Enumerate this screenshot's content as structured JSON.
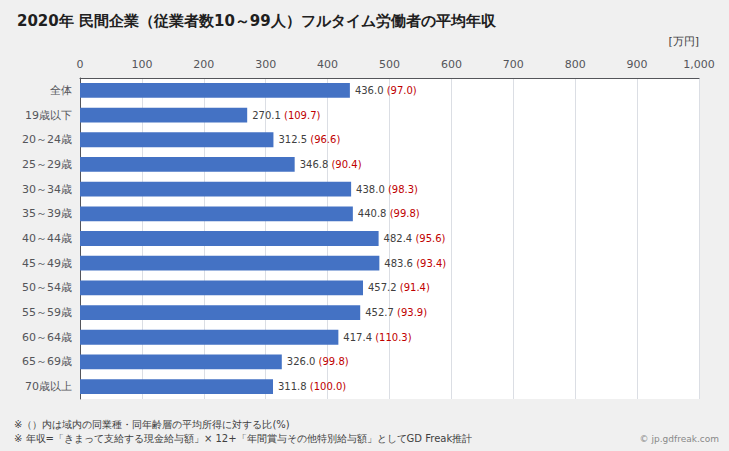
{
  "chart_data": {
    "type": "bar",
    "orientation": "horizontal",
    "title": "2020年 民間企業（従業者数10～99人）フルタイム労働者の平均年収",
    "xlabel": "[万円]",
    "categories": [
      "全体",
      "19歳以下",
      "20～24歳",
      "25～29歳",
      "30～34歳",
      "35～39歳",
      "40～44歳",
      "45～49歳",
      "50～54歳",
      "55～59歳",
      "60～64歳",
      "65～69歳",
      "70歳以上"
    ],
    "values": [
      436.0,
      270.1,
      312.5,
      346.8,
      438.0,
      440.8,
      482.4,
      483.6,
      457.2,
      452.7,
      417.4,
      326.0,
      311.8
    ],
    "value_labels": [
      "436.0",
      "270.1",
      "312.5",
      "346.8",
      "438.0",
      "440.8",
      "482.4",
      "483.6",
      "457.2",
      "452.7",
      "417.4",
      "326.0",
      "311.8"
    ],
    "ratios": [
      97.0,
      109.7,
      96.6,
      90.4,
      98.3,
      99.8,
      95.6,
      93.4,
      91.4,
      93.9,
      110.3,
      99.8,
      100.0
    ],
    "ratio_labels": [
      "(97.0)",
      "(109.7)",
      "(96.6)",
      "(90.4)",
      "(98.3)",
      "(99.8)",
      "(95.6)",
      "(93.4)",
      "(91.4)",
      "(93.9)",
      "(110.3)",
      "(99.8)",
      "(100.0)"
    ],
    "color": "#4472C4",
    "ratio_color": "#C00000",
    "data_labels": true,
    "grid": true,
    "xlim": [
      0,
      1000
    ],
    "xticks": [
      0,
      100,
      200,
      300,
      400,
      500,
      600,
      700,
      800,
      900,
      1000
    ],
    "annotations": [
      "※（）内は域内の同業種・同年齢層の平均所得に対する比(%)",
      "※ 年収=「きまって支給する現金給与額」× 12+「年間賞与その他特別給与額」としてGD Freak推計",
      "© jp.gdfreak.com"
    ]
  }
}
